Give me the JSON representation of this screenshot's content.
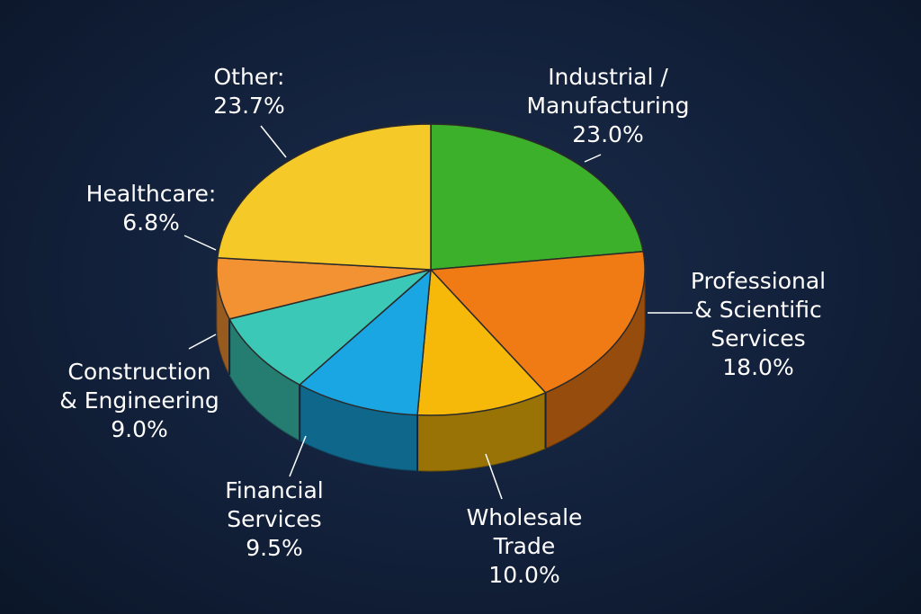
{
  "chart_data": {
    "type": "pie",
    "style": "3d",
    "title": "",
    "slices": [
      {
        "label": "Industrial / Manufacturing",
        "label_lines": [
          "Industrial /",
          "Manufacturing",
          "23.0%"
        ],
        "value": 23.0,
        "color": "#3cb02a"
      },
      {
        "label": "Professional & Scientific Services",
        "label_lines": [
          "Professional",
          "& Scientific",
          "Services",
          "18.0%"
        ],
        "value": 18.0,
        "color": "#f07a14"
      },
      {
        "label": "Wholesale Trade",
        "label_lines": [
          "Wholesale",
          "Trade",
          "10.0%"
        ],
        "value": 10.0,
        "color": "#f6b90a"
      },
      {
        "label": "Financial Services",
        "label_lines": [
          "Financial",
          "Services",
          "9.5%"
        ],
        "value": 9.5,
        "color": "#1aa6e2"
      },
      {
        "label": "Construction & Engineering",
        "label_lines": [
          "Construction",
          "& Engineering",
          "9.0%"
        ],
        "value": 9.0,
        "color": "#3cc8b6"
      },
      {
        "label": "Healthcare",
        "label_lines": [
          "Healthcare:",
          "6.8%"
        ],
        "value": 6.8,
        "color": "#f39232"
      },
      {
        "label": "Other",
        "label_lines": [
          "Other:",
          "23.7%"
        ],
        "value": 23.7,
        "color": "#f5c928"
      }
    ]
  }
}
